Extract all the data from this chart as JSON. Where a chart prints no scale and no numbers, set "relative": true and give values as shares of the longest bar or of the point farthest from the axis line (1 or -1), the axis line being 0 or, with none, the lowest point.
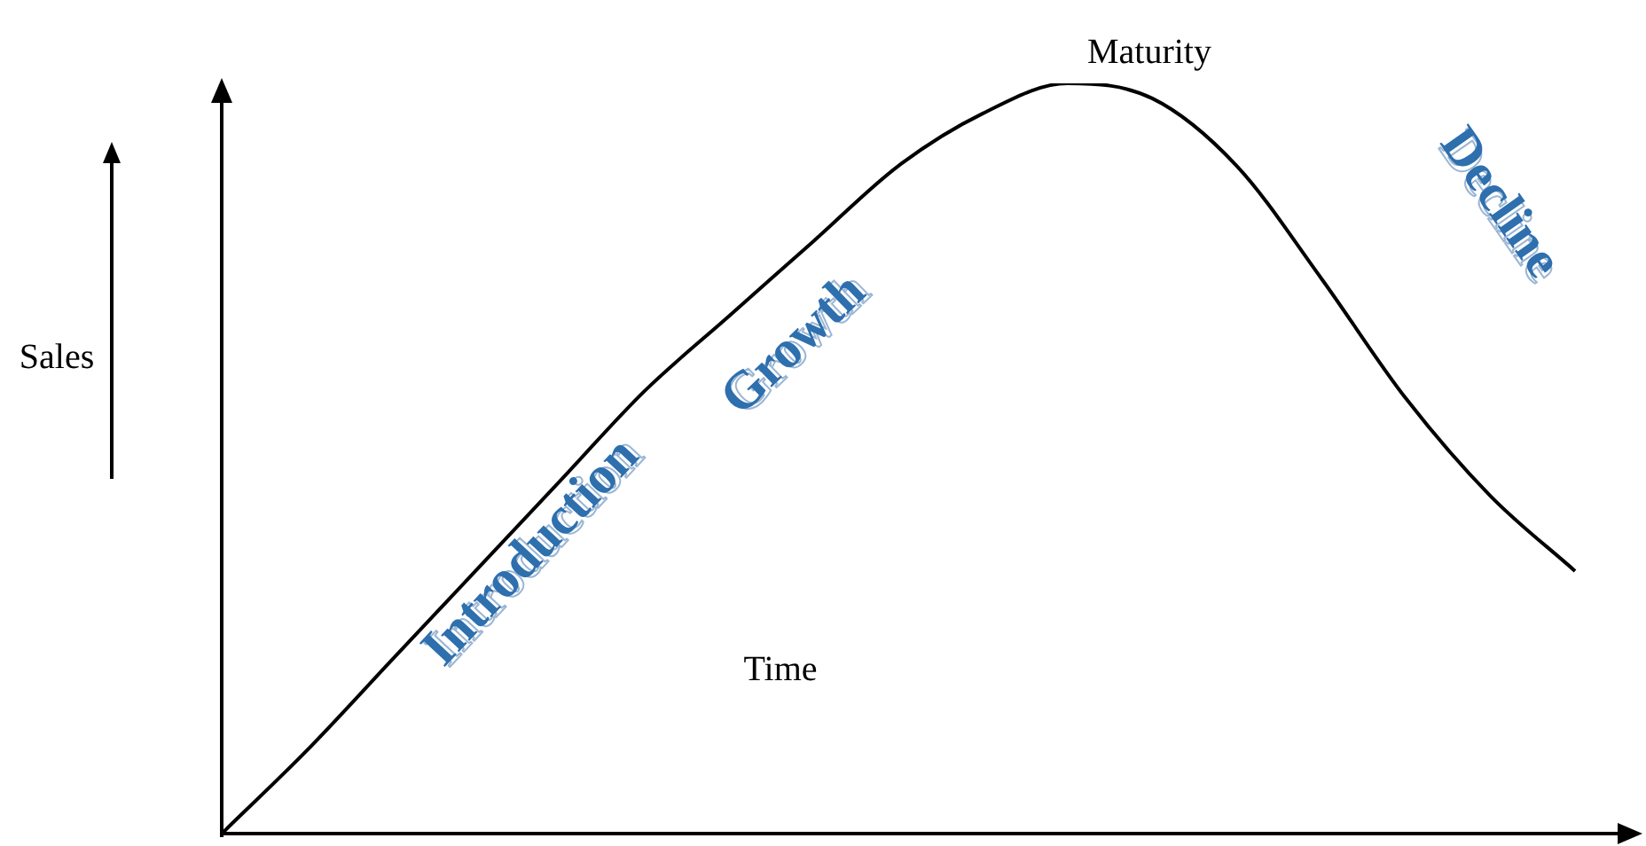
{
  "chart_data": {
    "type": "line",
    "relative": true,
    "xlabel": "Time",
    "ylabel": "Sales",
    "categories": [
      null,
      null,
      null,
      null,
      null,
      null,
      null,
      null,
      null,
      null,
      null,
      null,
      null,
      null,
      null,
      null,
      null
    ],
    "series": [
      {
        "color": "#000000",
        "values": [
          0,
          0.11,
          0.23,
          0.35,
          0.47,
          0.59,
          0.69,
          0.79,
          0.89,
          0.96,
          1,
          0.98,
          0.89,
          0.74,
          0.58,
          0.45,
          0.35
        ]
      }
    ],
    "annotations": [
      "Introduction",
      "Growth",
      "Maturity",
      "Decline"
    ],
    "marker": "none",
    "line_style": "solid",
    "legend": false
  }
}
